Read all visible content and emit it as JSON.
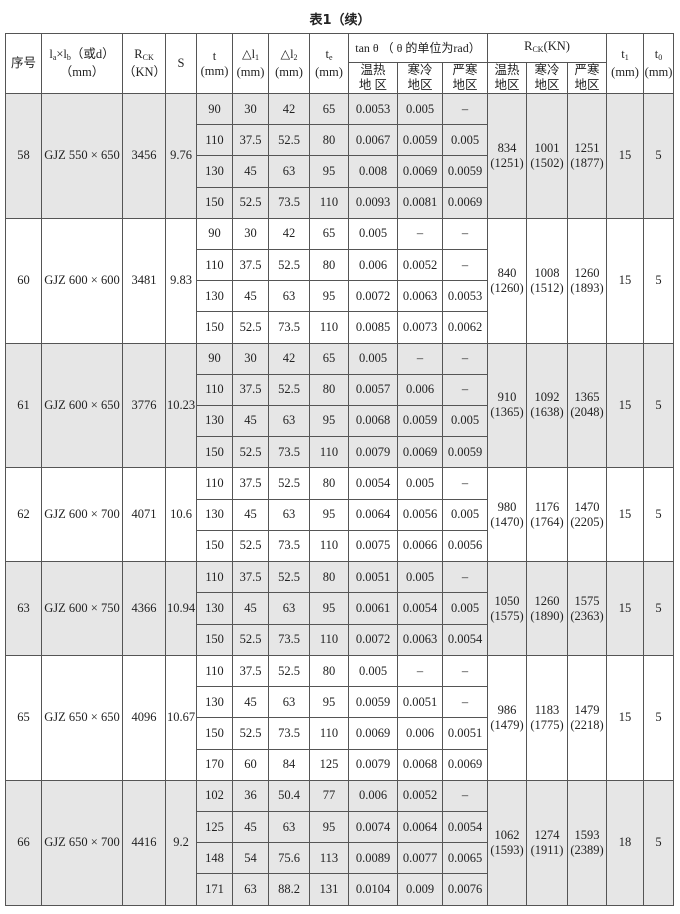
{
  "title": "表1（续）",
  "header": {
    "seq": "序号",
    "size_a": "l",
    "size_a_sub": "a",
    "size_x": "×l",
    "size_b_sub": "b",
    "size_rest": "（或d）",
    "size_unit": "（mm）",
    "rck": "R",
    "rck_sub": "CK",
    "rck_unit": "（KN）",
    "s": "S",
    "t": "t",
    "t_unit": "(mm)",
    "dl1": "△l",
    "dl1_sub": "1",
    "dl1_unit": "(mm)",
    "dl2": "△l",
    "dl2_sub": "2",
    "dl2_unit": "(mm)",
    "te": "t",
    "te_sub": "e",
    "te_unit": "(mm)",
    "tan_group": "tan θ （ θ 的单位为rad）",
    "rck_group": "R",
    "rck_group_sub": "CK",
    "rck_group_unit": "(KN)",
    "region_hot_tan": [
      "温热",
      "地 区"
    ],
    "region_cold": [
      "寒冷",
      "地区"
    ],
    "region_severe": [
      "严寒",
      "地区"
    ],
    "region_hot": [
      "温热",
      "地区"
    ],
    "t1": "t",
    "t1_sub": "1",
    "t1_unit": "(mm)",
    "t0": "t",
    "t0_sub": "0",
    "t0_unit": "(mm)"
  },
  "groups": [
    {
      "no": "58",
      "size": "GJZ 550 × 650",
      "rck": "3456",
      "s": "9.76",
      "shaded": true,
      "rows": [
        [
          "90",
          "30",
          "42",
          "65",
          "0.0053",
          "0.005",
          "–"
        ],
        [
          "110",
          "37.5",
          "52.5",
          "80",
          "0.0067",
          "0.0059",
          "0.005"
        ],
        [
          "130",
          "45",
          "63",
          "95",
          "0.008",
          "0.0069",
          "0.0059"
        ],
        [
          "150",
          "52.5",
          "73.5",
          "110",
          "0.0093",
          "0.0081",
          "0.0069"
        ]
      ],
      "r_hot": [
        "834",
        "(1251)"
      ],
      "r_cold": [
        "1001",
        "(1502)"
      ],
      "r_severe": [
        "1251",
        "(1877)"
      ],
      "t1": "15",
      "t0": "5"
    },
    {
      "no": "60",
      "size": "GJZ 600 × 600",
      "rck": "3481",
      "s": "9.83",
      "shaded": false,
      "rows": [
        [
          "90",
          "30",
          "42",
          "65",
          "0.005",
          "–",
          "–"
        ],
        [
          "110",
          "37.5",
          "52.5",
          "80",
          "0.006",
          "0.0052",
          "–"
        ],
        [
          "130",
          "45",
          "63",
          "95",
          "0.0072",
          "0.0063",
          "0.0053"
        ],
        [
          "150",
          "52.5",
          "73.5",
          "110",
          "0.0085",
          "0.0073",
          "0.0062"
        ]
      ],
      "r_hot": [
        "840",
        "(1260)"
      ],
      "r_cold": [
        "1008",
        "(1512)"
      ],
      "r_severe": [
        "1260",
        "(1893)"
      ],
      "t1": "15",
      "t0": "5"
    },
    {
      "no": "61",
      "size": "GJZ 600 × 650",
      "rck": "3776",
      "s": "10.23",
      "shaded": true,
      "rows": [
        [
          "90",
          "30",
          "42",
          "65",
          "0.005",
          "–",
          "–"
        ],
        [
          "110",
          "37.5",
          "52.5",
          "80",
          "0.0057",
          "0.006",
          "–"
        ],
        [
          "130",
          "45",
          "63",
          "95",
          "0.0068",
          "0.0059",
          "0.005"
        ],
        [
          "150",
          "52.5",
          "73.5",
          "110",
          "0.0079",
          "0.0069",
          "0.0059"
        ]
      ],
      "r_hot": [
        "910",
        "(1365)"
      ],
      "r_cold": [
        "1092",
        "(1638)"
      ],
      "r_severe": [
        "1365",
        "(2048)"
      ],
      "t1": "15",
      "t0": "5"
    },
    {
      "no": "62",
      "size": "GJZ 600 × 700",
      "rck": "4071",
      "s": "10.6",
      "shaded": false,
      "rows": [
        [
          "110",
          "37.5",
          "52.5",
          "80",
          "0.0054",
          "0.005",
          "–"
        ],
        [
          "130",
          "45",
          "63",
          "95",
          "0.0064",
          "0.0056",
          "0.005"
        ],
        [
          "150",
          "52.5",
          "73.5",
          "110",
          "0.0075",
          "0.0066",
          "0.0056"
        ]
      ],
      "r_hot": [
        "980",
        "(1470)"
      ],
      "r_cold": [
        "1176",
        "(1764)"
      ],
      "r_severe": [
        "1470",
        "(2205)"
      ],
      "t1": "15",
      "t0": "5"
    },
    {
      "no": "63",
      "size": "GJZ 600 × 750",
      "rck": "4366",
      "s": "10.94",
      "shaded": true,
      "rows": [
        [
          "110",
          "37.5",
          "52.5",
          "80",
          "0.0051",
          "0.005",
          "–"
        ],
        [
          "130",
          "45",
          "63",
          "95",
          "0.0061",
          "0.0054",
          "0.005"
        ],
        [
          "150",
          "52.5",
          "73.5",
          "110",
          "0.0072",
          "0.0063",
          "0.0054"
        ]
      ],
      "r_hot": [
        "1050",
        "(1575)"
      ],
      "r_cold": [
        "1260",
        "(1890)"
      ],
      "r_severe": [
        "1575",
        "(2363)"
      ],
      "t1": "15",
      "t0": "5"
    },
    {
      "no": "65",
      "size": "GJZ 650 × 650",
      "rck": "4096",
      "s": "10.67",
      "shaded": false,
      "rows": [
        [
          "110",
          "37.5",
          "52.5",
          "80",
          "0.005",
          "–",
          "–"
        ],
        [
          "130",
          "45",
          "63",
          "95",
          "0.0059",
          "0.0051",
          "–"
        ],
        [
          "150",
          "52.5",
          "73.5",
          "110",
          "0.0069",
          "0.006",
          "0.0051"
        ],
        [
          "170",
          "60",
          "84",
          "125",
          "0.0079",
          "0.0068",
          "0.0069"
        ]
      ],
      "r_hot": [
        "986",
        "(1479)"
      ],
      "r_cold": [
        "1183",
        "(1775)"
      ],
      "r_severe": [
        "1479",
        "(2218)"
      ],
      "t1": "15",
      "t0": "5"
    },
    {
      "no": "66",
      "size": "GJZ 650 × 700",
      "rck": "4416",
      "s": "9.2",
      "shaded": true,
      "rows": [
        [
          "102",
          "36",
          "50.4",
          "77",
          "0.006",
          "0.0052",
          "–"
        ],
        [
          "125",
          "45",
          "63",
          "95",
          "0.0074",
          "0.0064",
          "0.0054"
        ],
        [
          "148",
          "54",
          "75.6",
          "113",
          "0.0089",
          "0.0077",
          "0.0065"
        ],
        [
          "171",
          "63",
          "88.2",
          "131",
          "0.0104",
          "0.009",
          "0.0076"
        ]
      ],
      "r_hot": [
        "1062",
        "(1593)"
      ],
      "r_cold": [
        "1274",
        "(1911)"
      ],
      "r_severe": [
        "1593",
        "(2389)"
      ],
      "t1": "18",
      "t0": "5"
    }
  ]
}
